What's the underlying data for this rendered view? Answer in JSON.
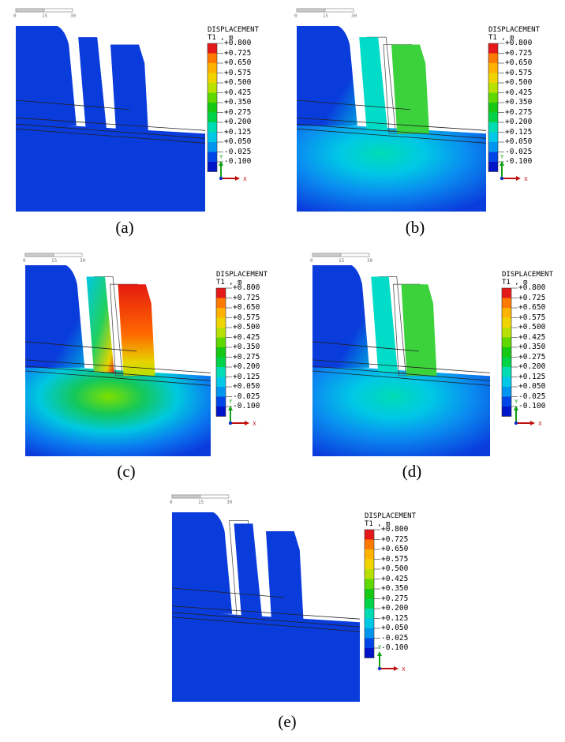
{
  "figure": {
    "legend": {
      "title_line1": "DISPLACEMENT",
      "title_line2": "T1 , m",
      "labels": [
        "+0.800",
        "+0.725",
        "+0.650",
        "+0.575",
        "+0.500",
        "+0.425",
        "+0.350",
        "+0.275",
        "+0.200",
        "+0.125",
        "+0.050",
        "-0.025",
        "-0.100"
      ],
      "colors": [
        "#e6191a",
        "#ff7a00",
        "#ffb300",
        "#f0d400",
        "#b8e000",
        "#5fd800",
        "#14c814",
        "#00d24a",
        "#00dcb4",
        "#00c8e6",
        "#0096f0",
        "#0046e6",
        "#0014c8"
      ]
    },
    "scale_labels": [
      "0",
      "15",
      "30"
    ],
    "axes": {
      "y": "Y",
      "x": "X"
    },
    "panels": [
      {
        "id": "a",
        "caption": "(a)",
        "field": "none"
      },
      {
        "id": "b",
        "caption": "(b)",
        "field": "moderate"
      },
      {
        "id": "c",
        "caption": "(c)",
        "field": "high"
      },
      {
        "id": "d",
        "caption": "(d)",
        "field": "moderate"
      },
      {
        "id": "e",
        "caption": "(e)",
        "field": "none"
      }
    ]
  }
}
